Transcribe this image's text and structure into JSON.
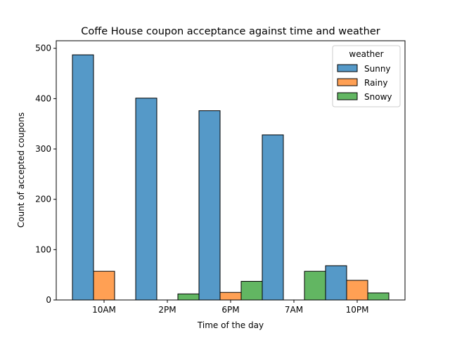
{
  "chart_data": {
    "type": "bar",
    "title": "Coffe House coupon acceptance against time and weather",
    "xlabel": "Time of the day",
    "ylabel": "Count of accepted coupons",
    "categories": [
      "10AM",
      "2PM",
      "6PM",
      "7AM",
      "10PM"
    ],
    "ylim": [
      0,
      515
    ],
    "yticks": [
      0,
      100,
      200,
      300,
      400,
      500
    ],
    "grid": false,
    "legend": {
      "title": "weather",
      "placement": "top-right"
    },
    "series": [
      {
        "name": "Sunny",
        "color": "#5599c8",
        "values": [
          487,
          401,
          376,
          328,
          68
        ]
      },
      {
        "name": "Rainy",
        "color": "#ffa054",
        "values": [
          57,
          0,
          15,
          0,
          39
        ]
      },
      {
        "name": "Snowy",
        "color": "#62b662",
        "values": [
          0,
          12,
          37,
          57,
          14
        ]
      }
    ]
  }
}
